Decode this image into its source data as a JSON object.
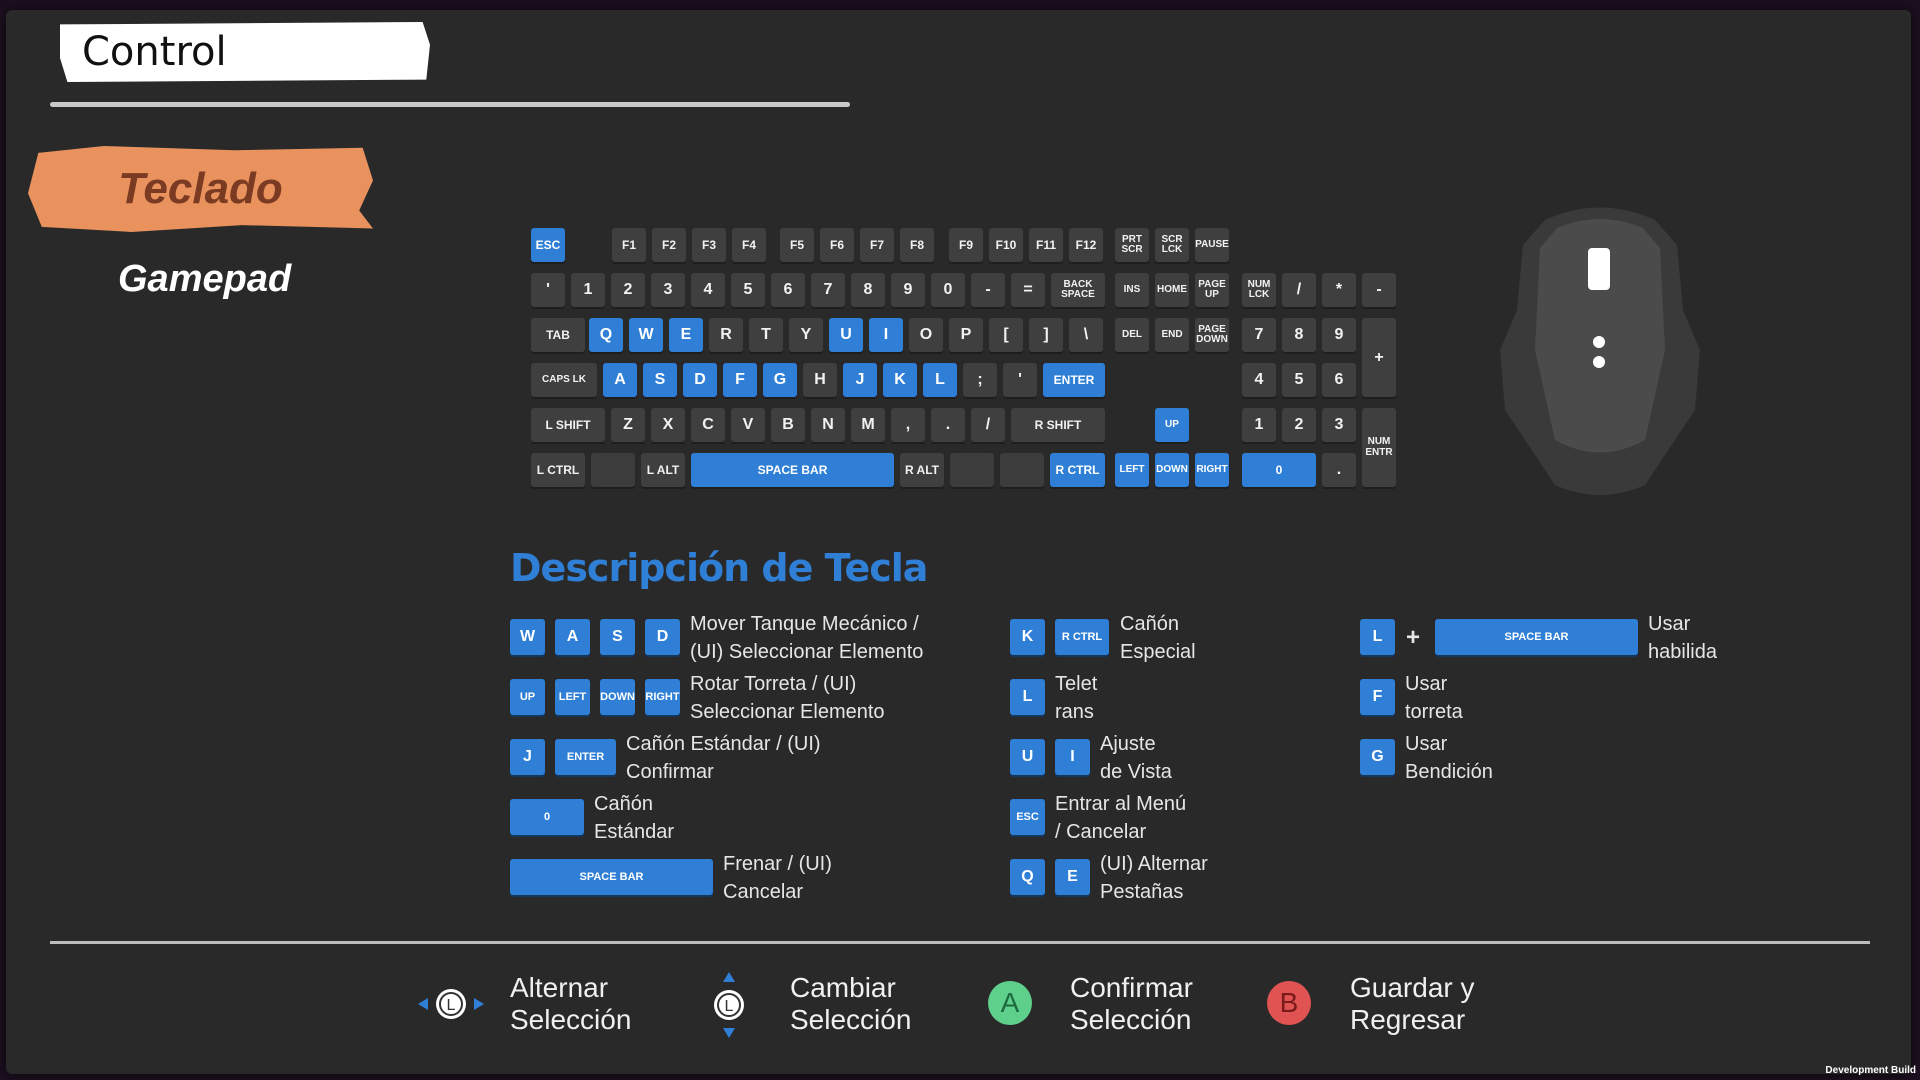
{
  "header": {
    "title": "Control"
  },
  "tabs": {
    "active": "Teclado",
    "other": "Gamepad"
  },
  "keyboard": {
    "row1": [
      "ESC",
      "F1",
      "F2",
      "F3",
      "F4",
      "F5",
      "F6",
      "F7",
      "F8",
      "F9",
      "F10",
      "F11",
      "F12",
      "PRT SCR",
      "SCR LCK",
      "PAUSE"
    ],
    "row2": [
      "'",
      "1",
      "2",
      "3",
      "4",
      "5",
      "6",
      "7",
      "8",
      "9",
      "0",
      "-",
      "=",
      "BACK SPACE",
      "INS",
      "HOME",
      "PAGE UP",
      "NUM LCK",
      "/",
      "*",
      "-"
    ],
    "row3": [
      "TAB",
      "Q",
      "W",
      "E",
      "R",
      "T",
      "Y",
      "U",
      "I",
      "O",
      "P",
      "[",
      "]",
      "\\",
      "DEL",
      "END",
      "PAGE DOWN",
      "7",
      "8",
      "9",
      "+"
    ],
    "row4": [
      "CAPS LK",
      "A",
      "S",
      "D",
      "F",
      "G",
      "H",
      "J",
      "K",
      "L",
      ";",
      "'",
      "ENTER",
      "4",
      "5",
      "6"
    ],
    "row5": [
      "L SHIFT",
      "Z",
      "X",
      "C",
      "V",
      "B",
      "N",
      "M",
      ",",
      ".",
      "/",
      "R SHIFT",
      "UP",
      "1",
      "2",
      "3",
      "NUM ENTR"
    ],
    "row6": [
      "L CTRL",
      "L ALT",
      "SPACE BAR",
      "R ALT",
      "R CTRL",
      "LEFT",
      "DOWN",
      "RIGHT",
      "0",
      "."
    ]
  },
  "description": {
    "title": "Descripción de Tecla",
    "items": [
      {
        "keys": [
          "W",
          "A",
          "S",
          "D"
        ],
        "text": "Mover Tanque Mecánico /\n(UI) Seleccionar Elemento"
      },
      {
        "keys": [
          "UP",
          "LEFT",
          "DOWN",
          "RIGHT"
        ],
        "text": "Rotar Torreta / (UI)\nSeleccionar Elemento"
      },
      {
        "keys": [
          "J",
          "ENTER"
        ],
        "text": "Cañón Estándar / (UI)\nConfirmar"
      },
      {
        "keys": [
          "0"
        ],
        "text": "Cañón\nEstándar"
      },
      {
        "keys": [
          "SPACE BAR"
        ],
        "text": "Frenar / (UI)\nCancelar"
      },
      {
        "keys": [
          "K",
          "R CTRL"
        ],
        "text": "Cañón\nEspecial"
      },
      {
        "keys": [
          "L"
        ],
        "text": "Telet\nrans"
      },
      {
        "keys": [
          "U",
          "I"
        ],
        "text": "Ajuste\nde Vista"
      },
      {
        "keys": [
          "ESC"
        ],
        "text": "Entrar al Menú\n/ Cancelar"
      },
      {
        "keys": [
          "Q",
          "E"
        ],
        "text": "(UI) Alternar\nPestañas"
      },
      {
        "keys": [
          "L",
          "+",
          "SPACE BAR"
        ],
        "text": "Usar\nhabilida"
      },
      {
        "keys": [
          "F"
        ],
        "text": "Usar\ntorreta"
      },
      {
        "keys": [
          "G"
        ],
        "text": "Usar\nBendición"
      }
    ]
  },
  "hints": [
    {
      "icon": "L",
      "text": "Alternar\nSelección"
    },
    {
      "icon": "L",
      "text": "Cambiar\nSelección"
    },
    {
      "icon": "A",
      "text": "Confirmar\nSelección"
    },
    {
      "icon": "B",
      "text": "Guardar y\nRegresar"
    }
  ],
  "footer": {
    "build": "Development Build"
  },
  "colors": {
    "accent": "#2f7fd6",
    "tab_active": "#e9925e",
    "button_a": "#5ed08c",
    "button_b": "#e05353"
  }
}
